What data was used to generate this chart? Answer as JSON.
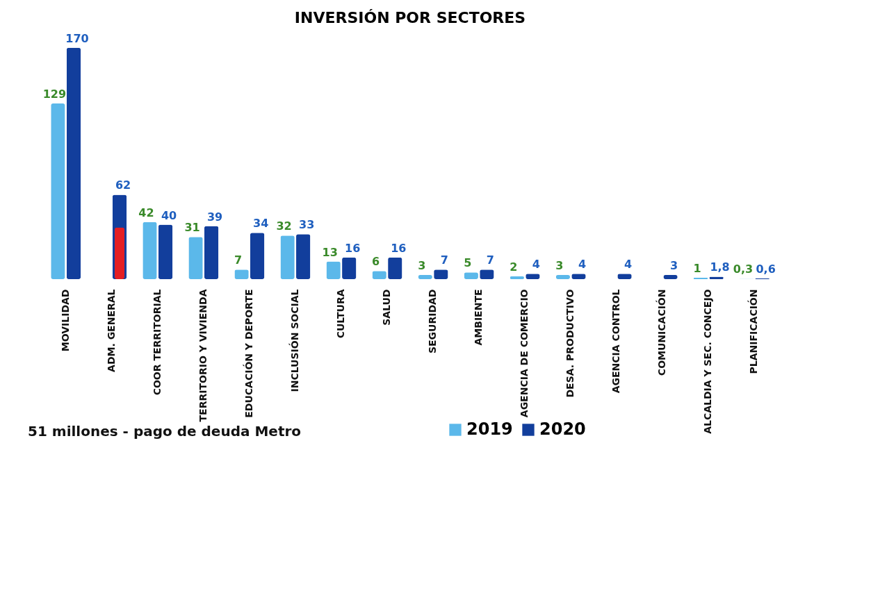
{
  "chart_data": {
    "type": "bar",
    "title": "INVERSIÓN POR SECTORES",
    "categories": [
      "MOVILIDAD",
      "ADM. GENERAL",
      "COOR TERRITORIAL",
      "TERRITORIO Y VIVIENDA",
      "EDUCACIÓN Y DEPORTE",
      "INCLUSIÓN SOCIAL",
      "CULTURA",
      "SALUD",
      "SEGURIDAD",
      "AMBIENTE",
      "AGENCIA DE COMERCIO",
      "DESA. PRODUCTIVO",
      "AGENCIA  CONTROL",
      "COMUNICACIÓN",
      "ALCALDIA Y SEC. CONCEJO",
      "PLANIFICACIÓN"
    ],
    "series": [
      {
        "name": "2019",
        "color": "#5bb8ea",
        "values": [
          129,
          null,
          42,
          31,
          7,
          32,
          13,
          6,
          3,
          5,
          2,
          3,
          null,
          null,
          1,
          0.3
        ],
        "value_labels": [
          "129",
          null,
          "42",
          "31",
          "7",
          "32",
          "13",
          "6",
          "3",
          "5",
          "2",
          "3",
          null,
          null,
          "1",
          "0,3"
        ]
      },
      {
        "name": "2020",
        "color": "#123e9c",
        "values": [
          170,
          62,
          40,
          39,
          34,
          33,
          16,
          16,
          7,
          7,
          4,
          4,
          4,
          3,
          1.8,
          0.6
        ],
        "value_labels": [
          "170",
          "62",
          "40",
          "39",
          "34",
          "33",
          "16",
          "16",
          "7",
          "7",
          "4",
          "4",
          "4",
          "3",
          "1,8",
          "0,6"
        ]
      },
      {
        "color": "#e31e24",
        "values": [
          null,
          38,
          null,
          null,
          null,
          null,
          null,
          null,
          null,
          null,
          null,
          null,
          null,
          null,
          null,
          null
        ]
      }
    ],
    "annotations": [
      "51 millones - pago de deuda Metro"
    ],
    "legend": "bottom",
    "grid": false
  }
}
